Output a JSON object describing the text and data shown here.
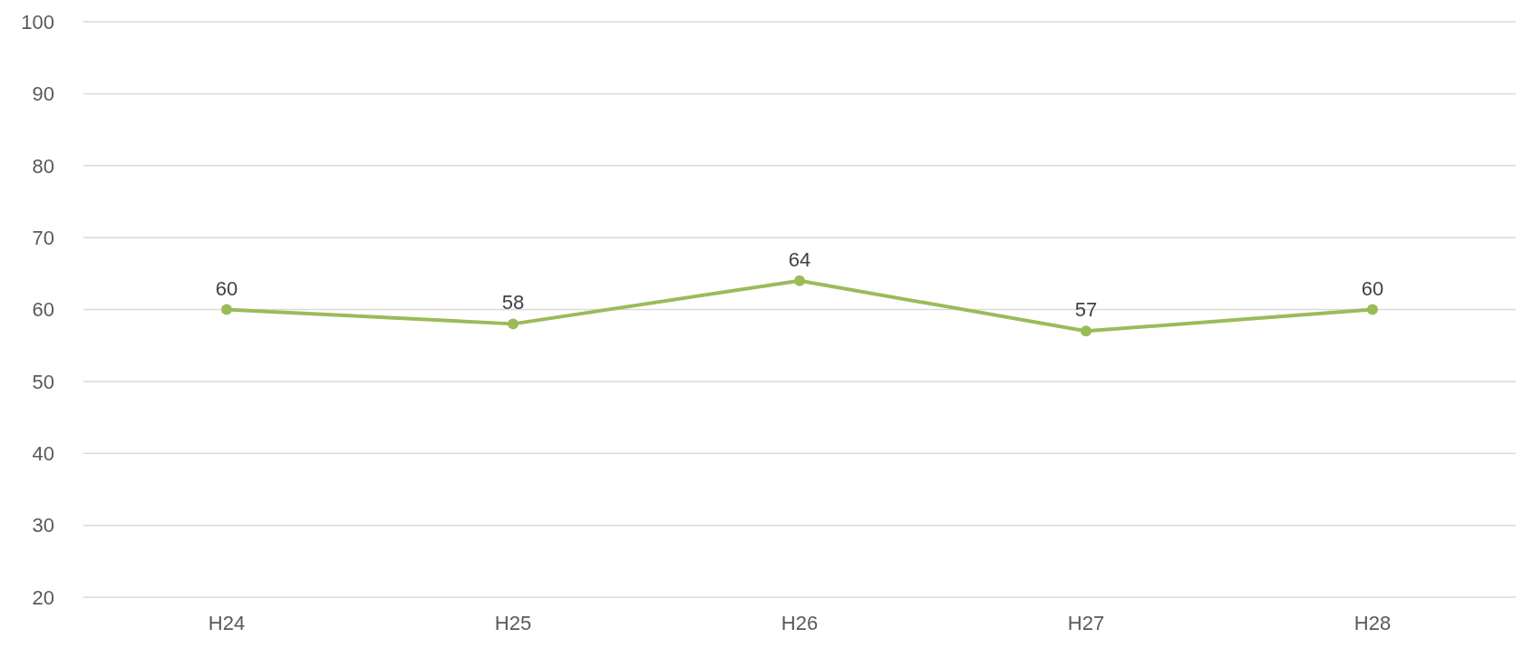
{
  "chart_data": {
    "type": "line",
    "categories": [
      "H24",
      "H25",
      "H26",
      "H27",
      "H28"
    ],
    "series": [
      {
        "color": "#9bbb59",
        "values": [
          60,
          58,
          64,
          57,
          60
        ]
      }
    ],
    "ylim": [
      20,
      100
    ],
    "yticks": [
      20,
      30,
      40,
      50,
      60,
      70,
      80,
      90,
      100
    ],
    "grid": "y",
    "data_labels": true,
    "marker": "circle",
    "line_style": "solid",
    "legend": false
  }
}
